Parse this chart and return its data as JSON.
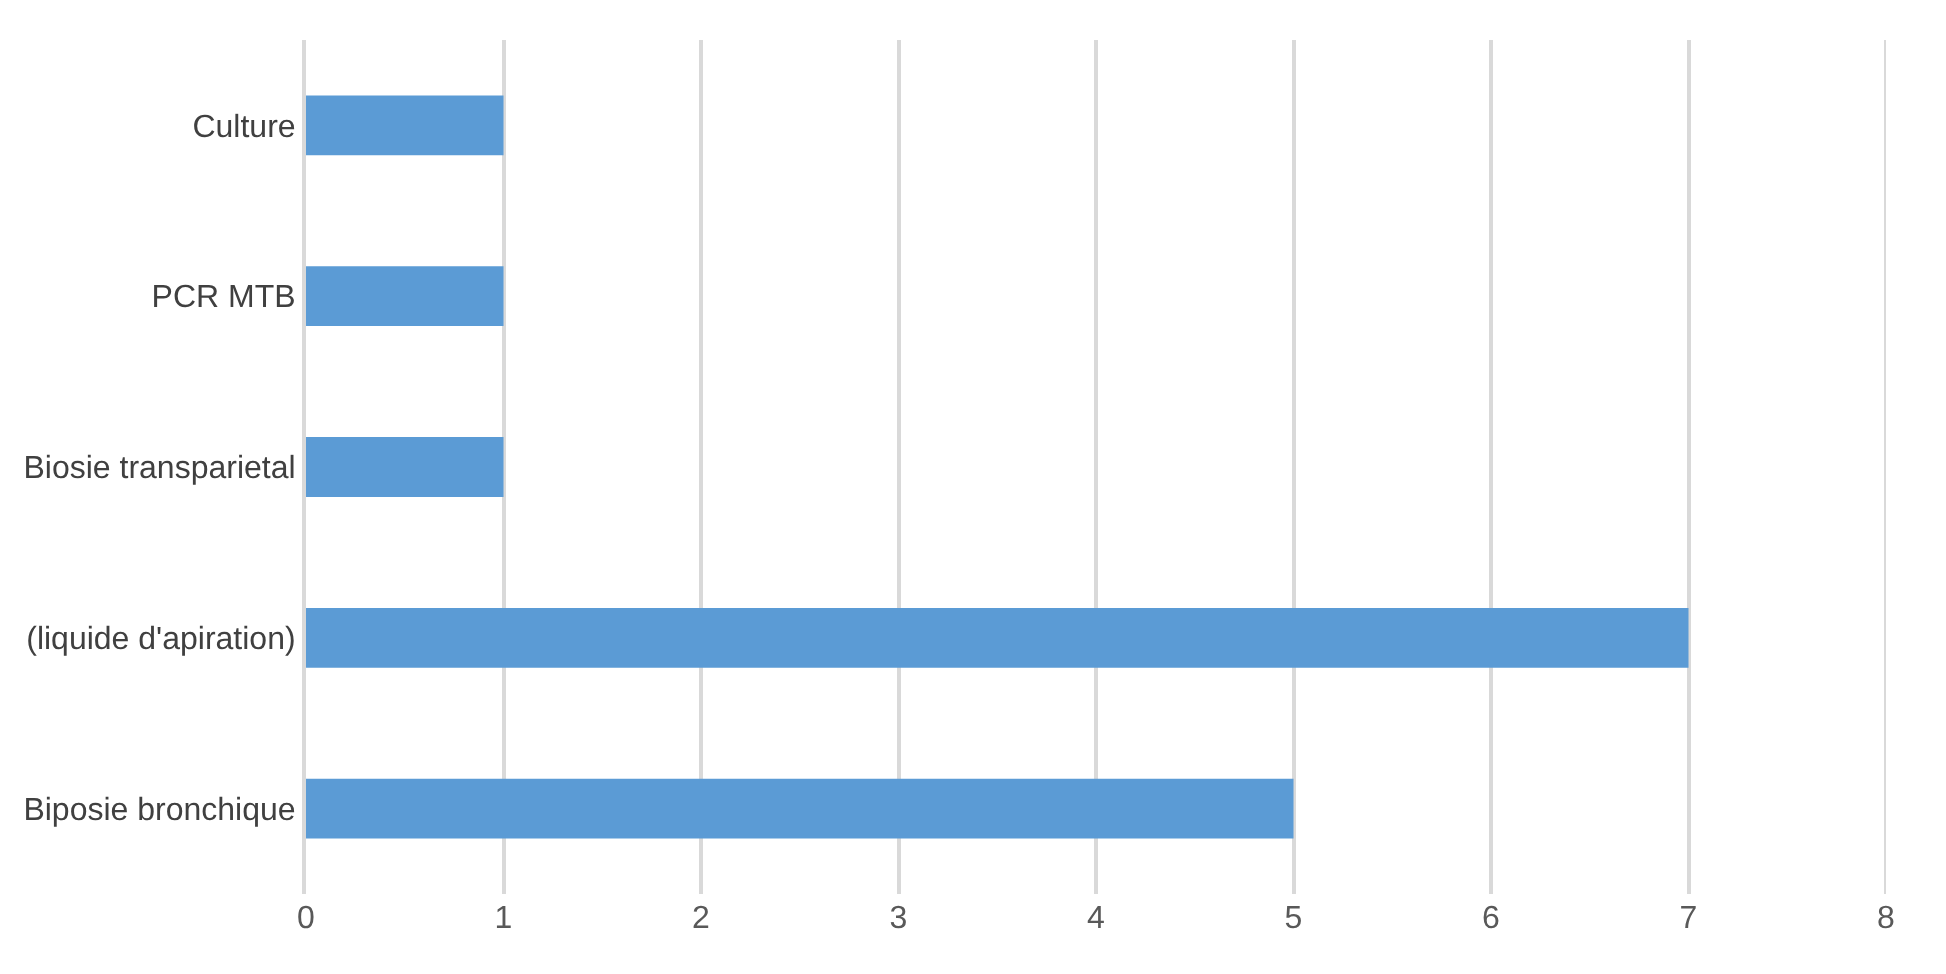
{
  "chart_data": {
    "type": "bar",
    "orientation": "horizontal",
    "categories": [
      "Culture",
      "PCR MTB",
      "Biosie transparietal",
      "(liquide d'apiration)",
      "Biposie bronchique"
    ],
    "values": [
      1,
      1,
      1,
      7,
      5
    ],
    "color": "#5b9bd5",
    "xlim": [
      0,
      8
    ],
    "xticks": [
      0,
      1,
      2,
      3,
      4,
      5,
      6,
      7,
      8
    ],
    "grid": "x"
  }
}
